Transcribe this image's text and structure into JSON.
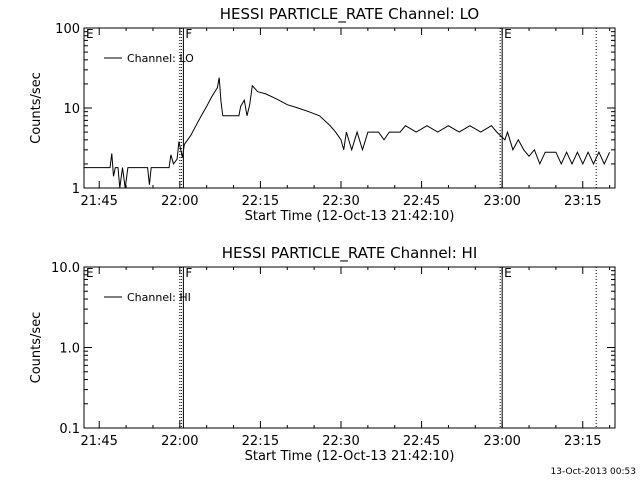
{
  "footer": {
    "timestamp": "13-Oct-2013 00:53"
  },
  "chart_data": [
    {
      "type": "line",
      "title": "HESSI PARTICLE_RATE Channel: LO",
      "xlabel": "Start Time (12-Oct-13 21:42:10)",
      "ylabel": "Counts/sec",
      "yscale": "log",
      "ylim": [
        1,
        100
      ],
      "xlim": [
        "21:42:10",
        "23:21:00"
      ],
      "x_ticks": [
        "21:45",
        "22:00",
        "22:15",
        "22:30",
        "22:45",
        "23:00",
        "23:15"
      ],
      "y_ticks": [
        "1",
        "10",
        "100"
      ],
      "legend": {
        "position": "top-left",
        "entries": [
          "Channel: LO"
        ]
      },
      "grid": false,
      "markers": [
        {
          "label": "E",
          "time": "21:42:10",
          "style": "none"
        },
        {
          "label": "F",
          "time": "22:00:40",
          "style": "solid"
        },
        {
          "label": "E",
          "time": "23:00:00",
          "style": "solid"
        }
      ],
      "dotted_lines": [
        "22:00:00",
        "23:17:30"
      ],
      "series": [
        {
          "name": "Channel: LO",
          "points": [
            [
              "21:42:10",
              1.8
            ],
            [
              "21:47:00",
              1.8
            ],
            [
              "21:47:20",
              2.7
            ],
            [
              "21:47:40",
              1.4
            ],
            [
              "21:48:00",
              1.8
            ],
            [
              "21:48:30",
              1.8
            ],
            [
              "21:48:50",
              1.0
            ],
            [
              "21:49:20",
              1.8
            ],
            [
              "21:49:50",
              1.0
            ],
            [
              "21:50:20",
              1.8
            ],
            [
              "21:54:00",
              1.8
            ],
            [
              "21:54:20",
              1.1
            ],
            [
              "21:54:40",
              1.8
            ],
            [
              "21:58:00",
              1.8
            ],
            [
              "21:58:20",
              2.6
            ],
            [
              "21:58:50",
              2.0
            ],
            [
              "21:59:30",
              2.3
            ],
            [
              "21:59:50",
              3.8
            ],
            [
              "22:00:30",
              2.4
            ],
            [
              "22:00:50",
              3.5
            ],
            [
              "22:02:00",
              4.5
            ],
            [
              "22:03:00",
              6.0
            ],
            [
              "22:04:00",
              8.0
            ],
            [
              "22:05:00",
              10.5
            ],
            [
              "22:06:00",
              14.0
            ],
            [
              "22:07:00",
              18.0
            ],
            [
              "22:07:20",
              24.0
            ],
            [
              "22:07:40",
              12.0
            ],
            [
              "22:08:00",
              8.0
            ],
            [
              "22:11:00",
              8.0
            ],
            [
              "22:11:20",
              10.5
            ],
            [
              "22:12:00",
              12.5
            ],
            [
              "22:12:30",
              8.0
            ],
            [
              "22:13:00",
              11.0
            ],
            [
              "22:13:30",
              19.0
            ],
            [
              "22:14:30",
              16.0
            ],
            [
              "22:16:00",
              15.0
            ],
            [
              "22:18:00",
              13.0
            ],
            [
              "22:20:00",
              11.0
            ],
            [
              "22:22:00",
              10.0
            ],
            [
              "22:24:00",
              9.0
            ],
            [
              "22:26:00",
              8.0
            ],
            [
              "22:28:00",
              6.0
            ],
            [
              "22:29:00",
              5.0
            ],
            [
              "22:30:00",
              4.0
            ],
            [
              "22:30:30",
              3.0
            ],
            [
              "22:31:00",
              5.0
            ],
            [
              "22:32:00",
              3.0
            ],
            [
              "22:33:00",
              5.0
            ],
            [
              "22:34:00",
              3.0
            ],
            [
              "22:35:00",
              5.0
            ],
            [
              "22:37:00",
              5.0
            ],
            [
              "22:38:00",
              4.0
            ],
            [
              "22:39:00",
              5.0
            ],
            [
              "22:41:00",
              5.0
            ],
            [
              "22:42:00",
              6.0
            ],
            [
              "22:44:00",
              5.0
            ],
            [
              "22:46:00",
              6.0
            ],
            [
              "22:48:00",
              5.0
            ],
            [
              "22:50:00",
              6.0
            ],
            [
              "22:52:00",
              5.0
            ],
            [
              "22:54:00",
              6.0
            ],
            [
              "22:56:00",
              5.0
            ],
            [
              "22:58:00",
              6.0
            ],
            [
              "22:59:00",
              5.0
            ],
            [
              "23:00:30",
              4.0
            ],
            [
              "23:01:00",
              5.0
            ],
            [
              "23:02:00",
              3.0
            ],
            [
              "23:03:00",
              4.0
            ],
            [
              "23:04:00",
              3.0
            ],
            [
              "23:05:00",
              2.5
            ],
            [
              "23:06:00",
              3.0
            ],
            [
              "23:07:00",
              2.0
            ],
            [
              "23:08:00",
              2.8
            ],
            [
              "23:10:00",
              2.8
            ],
            [
              "23:11:00",
              2.0
            ],
            [
              "23:12:00",
              2.8
            ],
            [
              "23:13:00",
              2.0
            ],
            [
              "23:14:00",
              2.8
            ],
            [
              "23:15:00",
              2.0
            ],
            [
              "23:16:00",
              2.8
            ],
            [
              "23:17:00",
              2.0
            ],
            [
              "23:18:00",
              2.8
            ],
            [
              "23:19:00",
              2.0
            ],
            [
              "23:20:00",
              2.8
            ]
          ]
        }
      ]
    },
    {
      "type": "line",
      "title": "HESSI PARTICLE_RATE Channel: HI",
      "xlabel": "Start Time (12-Oct-13 21:42:10)",
      "ylabel": "Counts/sec",
      "yscale": "log",
      "ylim": [
        0.1,
        10.0
      ],
      "xlim": [
        "21:42:10",
        "23:21:00"
      ],
      "x_ticks": [
        "21:45",
        "22:00",
        "22:15",
        "22:30",
        "22:45",
        "23:00",
        "23:15"
      ],
      "y_ticks": [
        "0.1",
        "1.0",
        "10.0"
      ],
      "legend": {
        "position": "top-left",
        "entries": [
          "Channel: HI"
        ]
      },
      "grid": false,
      "markers": [
        {
          "label": "E",
          "time": "21:42:10",
          "style": "none"
        },
        {
          "label": "F",
          "time": "22:00:40",
          "style": "solid"
        },
        {
          "label": "E",
          "time": "23:00:00",
          "style": "solid"
        }
      ],
      "dotted_lines": [
        "22:00:00",
        "23:17:30"
      ],
      "series": [
        {
          "name": "Channel: HI",
          "points": []
        }
      ]
    }
  ]
}
